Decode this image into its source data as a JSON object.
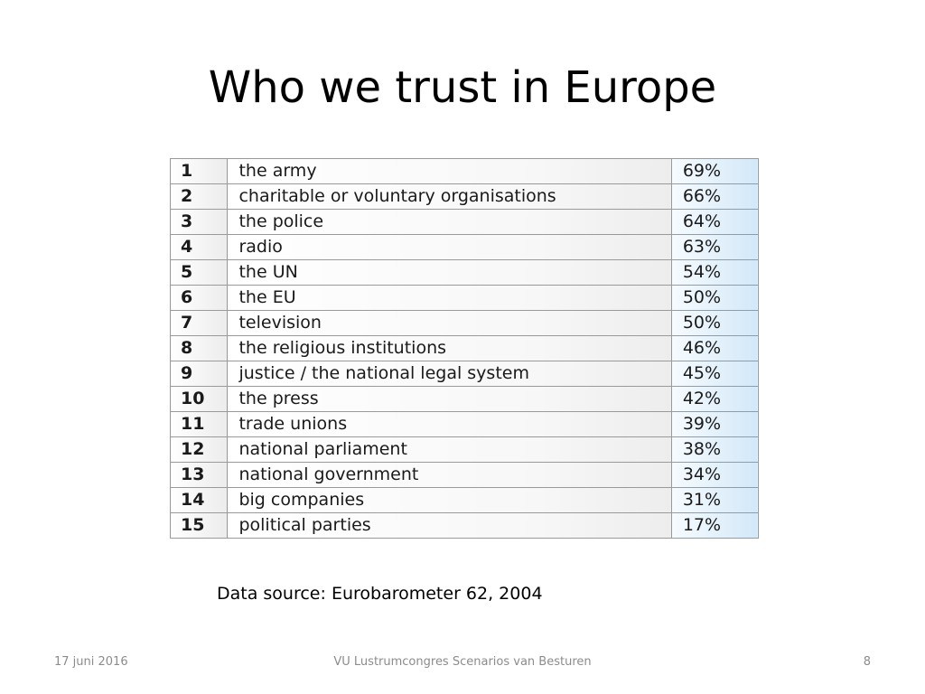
{
  "slide": {
    "title": "Who we trust in Europe",
    "source_note": "Data source: Eurobarometer 62, 2004"
  },
  "table": {
    "rows": [
      {
        "rank": "1",
        "item": "the army",
        "percent": "69%"
      },
      {
        "rank": "2",
        "item": "charitable or voluntary organisations",
        "percent": "66%"
      },
      {
        "rank": "3",
        "item": "the police",
        "percent": "64%"
      },
      {
        "rank": "4",
        "item": "radio",
        "percent": "63%"
      },
      {
        "rank": "5",
        "item": "the UN",
        "percent": "54%"
      },
      {
        "rank": "6",
        "item": "the EU",
        "percent": "50%"
      },
      {
        "rank": "7",
        "item": "television",
        "percent": "50%"
      },
      {
        "rank": "8",
        "item": "the religious institutions",
        "percent": "46%"
      },
      {
        "rank": "9",
        "item": "justice / the national legal system",
        "percent": "45%"
      },
      {
        "rank": "10",
        "item": "the press",
        "percent": "42%"
      },
      {
        "rank": "11",
        "item": "trade unions",
        "percent": "39%"
      },
      {
        "rank": "12",
        "item": "national parliament",
        "percent": "38%"
      },
      {
        "rank": "13",
        "item": "national government",
        "percent": "34%"
      },
      {
        "rank": "14",
        "item": "big companies",
        "percent": "31%"
      },
      {
        "rank": "15",
        "item": "political parties",
        "percent": "17%"
      }
    ]
  },
  "footer": {
    "date": "17 juni 2016",
    "center": "VU Lustrumcongres Scenarios van Besturen",
    "page_number": "8"
  },
  "colors": {
    "percent_column_tint": "#d3e8f8",
    "grid_line": "#9a9a9a",
    "footer_text": "#8c8c8c"
  }
}
